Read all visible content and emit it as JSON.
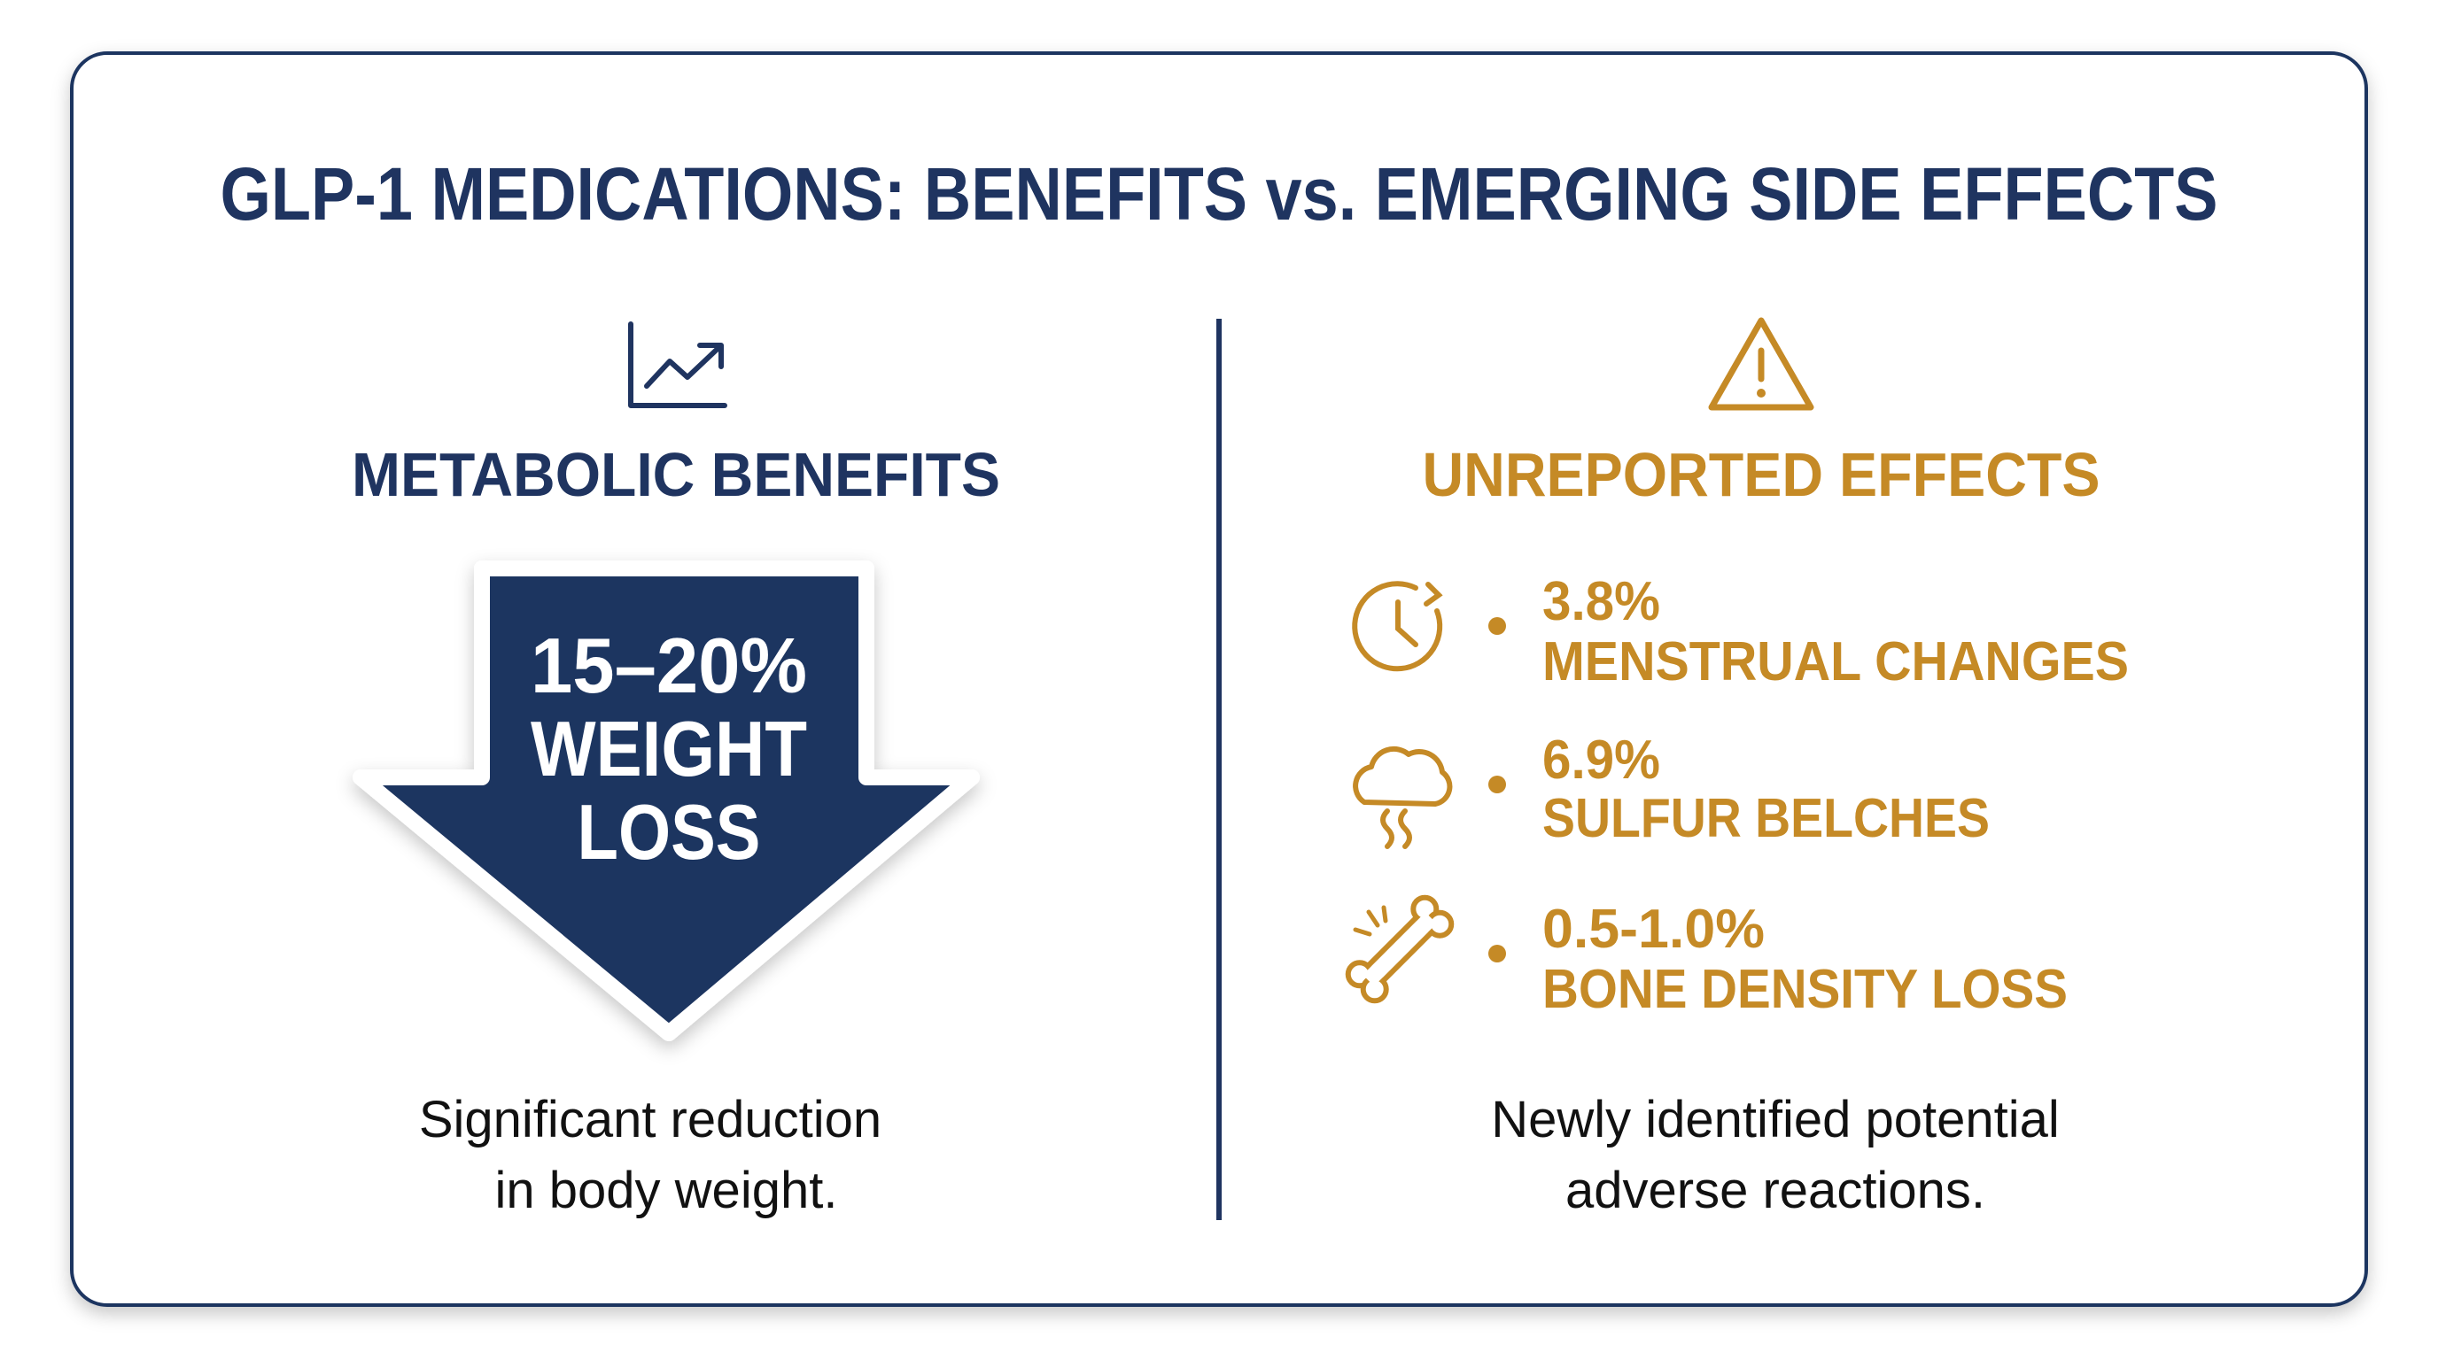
{
  "title": "GLP-1 MEDICATIONS: BENEFITS vs. EMERGING SIDE EFFECTS",
  "benefits": {
    "heading": "METABOLIC BENEFITS",
    "arrow_text": [
      "15–20%",
      "WEIGHT",
      "LOSS"
    ],
    "caption": [
      "Significant reduction",
      "in body weight."
    ]
  },
  "effects": {
    "heading": "UNREPORTED EFFECTS",
    "items": [
      {
        "percent": "3.8%",
        "label": "MENSTRUAL CHANGES"
      },
      {
        "percent": "6.9%",
        "label": "SULFUR BELCHES"
      },
      {
        "percent": "0.5-1.0%",
        "label": "BONE DENSITY LOSS"
      }
    ],
    "caption": [
      "Newly identified potential",
      "adverse reactions."
    ]
  }
}
